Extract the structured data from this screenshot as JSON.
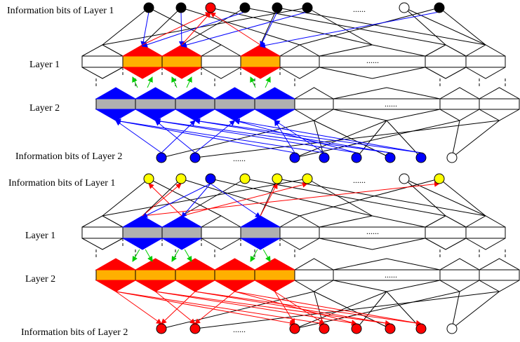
{
  "colors": {
    "red": "#ff0000",
    "orange": "#ffb000",
    "blue": "#0000ff",
    "gray": "#b0b0b0",
    "yellow": "#ffff00",
    "green": "#00cc00",
    "black": "#000000",
    "white": "#ffffff"
  },
  "panels": [
    {
      "info1_label": "Information bits of Layer 1",
      "layer1_label": "Layer 1",
      "layer2_label": "Layer 2",
      "info2_label": "Information bits of Layer 2",
      "info1_ellipsis": "......",
      "layer1_ellipsis": "......",
      "layer2_ellipsis": "......",
      "info2_ellipsis": "......",
      "info1_fills": [
        "black",
        "black",
        "red",
        "black",
        "black",
        "black",
        "white",
        "black"
      ],
      "info2_fills": [
        "blue",
        "blue",
        "blue",
        "blue",
        "blue",
        "blue",
        "blue",
        "white"
      ],
      "layer1_active": "red",
      "layer1_active_fill": "orange",
      "layer2_active": "blue",
      "layer2_active_fill": "gray",
      "info1_arrow_color": "blue",
      "info1_red_source_color": "red",
      "info2_arrow_color": "blue",
      "green_direction": "up"
    },
    {
      "info1_label": "Information bits of Layer 1",
      "layer1_label": "Layer 1",
      "layer2_label": "Layer 2",
      "info2_label": "Information bits of Layer 2",
      "info1_ellipsis": "......",
      "layer1_ellipsis": "......",
      "layer2_ellipsis": "......",
      "info2_ellipsis": "......",
      "info1_fills": [
        "yellow",
        "yellow",
        "blue",
        "yellow",
        "yellow",
        "yellow",
        "white",
        "yellow"
      ],
      "info2_fills": [
        "red",
        "red",
        "red",
        "red",
        "red",
        "red",
        "red",
        "white"
      ],
      "layer1_active": "blue",
      "layer1_active_fill": "gray",
      "layer2_active": "red",
      "layer2_active_fill": "orange",
      "info1_arrow_color": "red",
      "info1_red_source_color": "blue",
      "info2_arrow_color": "red",
      "green_direction": "down"
    }
  ]
}
